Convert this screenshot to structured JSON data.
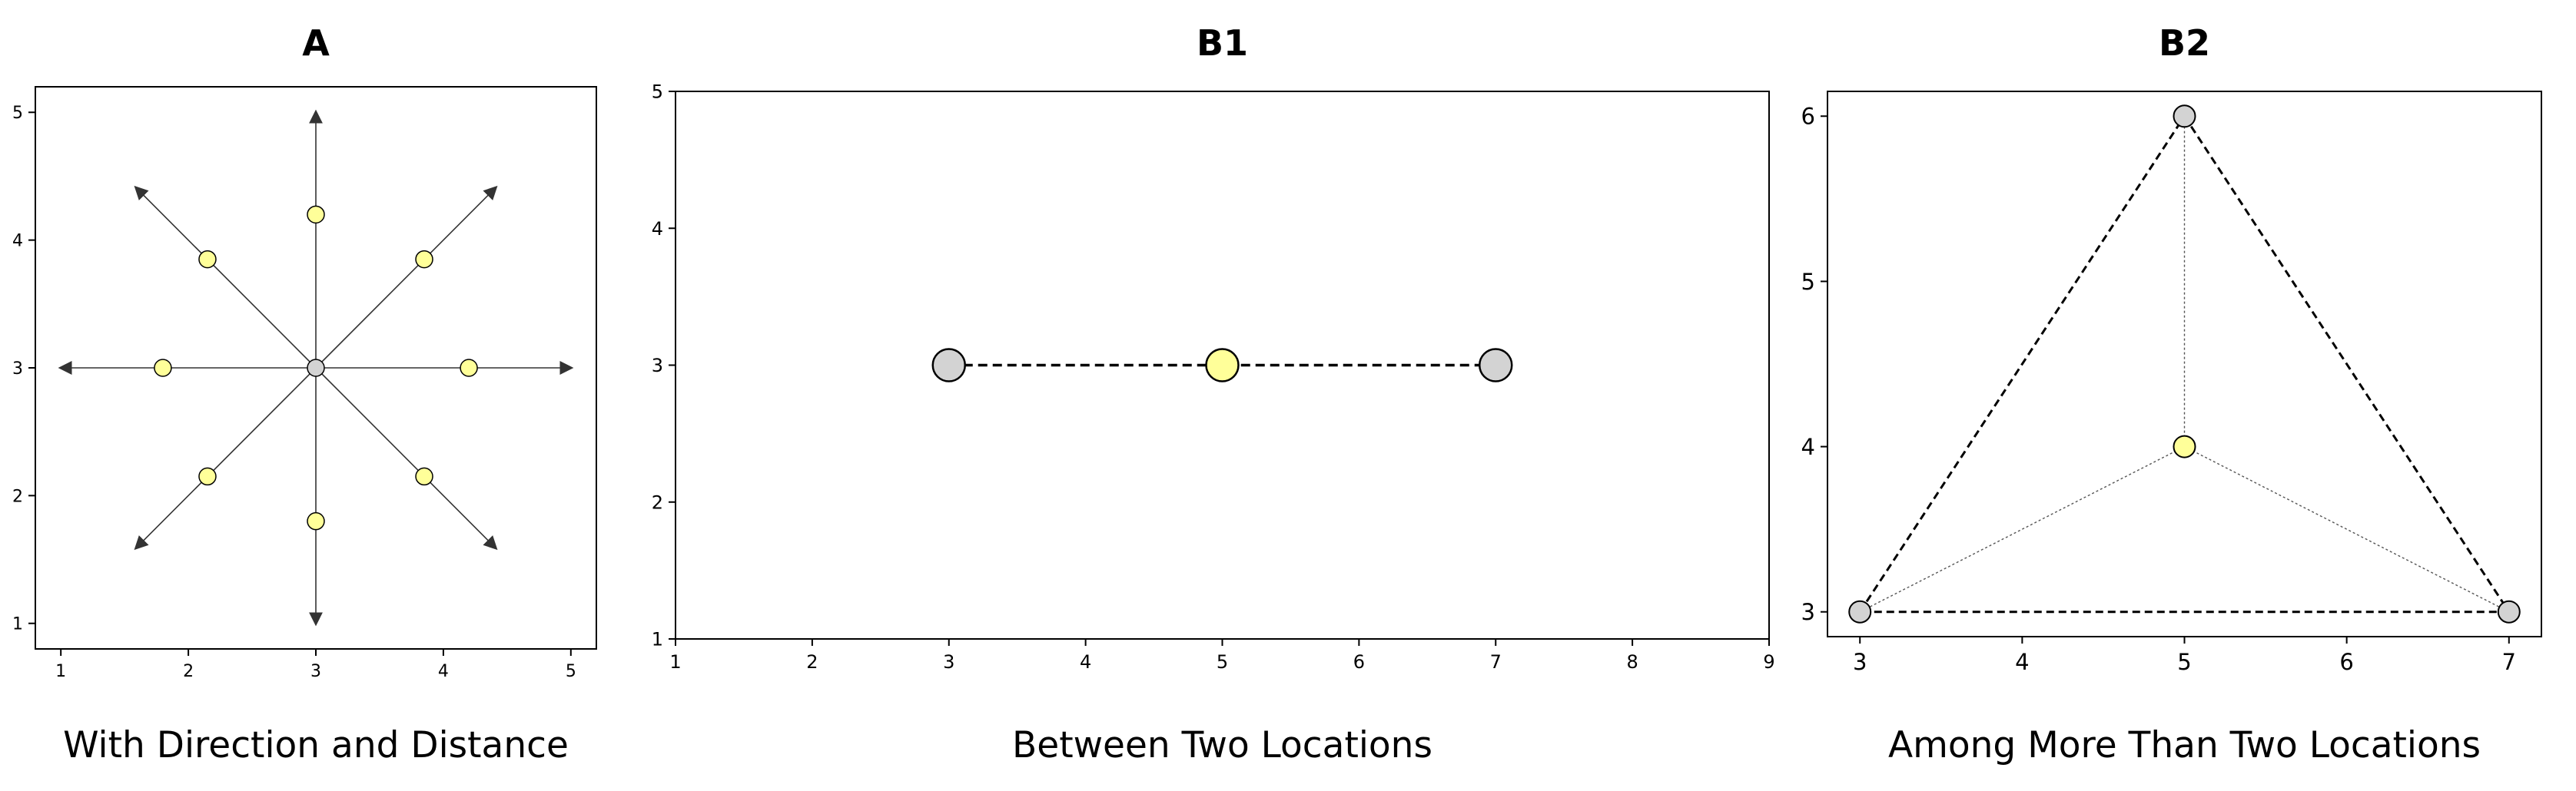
{
  "colors": {
    "location_fill": "#d3d3d3",
    "point_fill": "#ffff99",
    "stroke": "#000000",
    "arrow": "#333333",
    "connector": "#555555"
  },
  "chart_data": [
    {
      "id": "A",
      "type": "diagram",
      "title": "A",
      "caption": "With Direction and Distance",
      "xlim": [
        0.8,
        5.2
      ],
      "ylim": [
        0.8,
        5.2
      ],
      "xticks": [
        1,
        2,
        3,
        4,
        5
      ],
      "yticks": [
        1,
        2,
        3,
        4,
        5
      ],
      "origin": {
        "x": 3,
        "y": 3
      },
      "arrows": [
        {
          "x": 5,
          "y": 3
        },
        {
          "x": 4.41,
          "y": 4.41
        },
        {
          "x": 3,
          "y": 5
        },
        {
          "x": 1.59,
          "y": 4.41
        },
        {
          "x": 1,
          "y": 3
        },
        {
          "x": 1.59,
          "y": 1.59
        },
        {
          "x": 3,
          "y": 1
        },
        {
          "x": 4.41,
          "y": 1.59
        }
      ],
      "points": [
        {
          "x": 4.2,
          "y": 3
        },
        {
          "x": 3.85,
          "y": 3.85
        },
        {
          "x": 3,
          "y": 4.2
        },
        {
          "x": 2.15,
          "y": 3.85
        },
        {
          "x": 1.8,
          "y": 3
        },
        {
          "x": 2.15,
          "y": 2.15
        },
        {
          "x": 3,
          "y": 1.8
        },
        {
          "x": 3.85,
          "y": 2.15
        }
      ]
    },
    {
      "id": "B1",
      "type": "diagram",
      "title": "B1",
      "caption": "Between Two Locations",
      "xlim": [
        1,
        9
      ],
      "ylim": [
        1,
        5
      ],
      "xticks": [
        1,
        2,
        3,
        4,
        5,
        6,
        7,
        8,
        9
      ],
      "yticks": [
        1,
        2,
        3,
        4,
        5
      ],
      "locations": [
        {
          "x": 3,
          "y": 3
        },
        {
          "x": 7,
          "y": 3
        }
      ],
      "midpoint": {
        "x": 5,
        "y": 3
      }
    },
    {
      "id": "B2",
      "type": "diagram",
      "title": "B2",
      "caption": "Among More Than Two Locations",
      "xlim": [
        2.8,
        7.2
      ],
      "ylim": [
        2.85,
        6.15
      ],
      "xticks": [
        3,
        4,
        5,
        6,
        7
      ],
      "yticks": [
        3,
        4,
        5,
        6
      ],
      "locations": [
        {
          "x": 3,
          "y": 3
        },
        {
          "x": 5,
          "y": 6
        },
        {
          "x": 7,
          "y": 3
        }
      ],
      "center": {
        "x": 5,
        "y": 4
      }
    }
  ]
}
